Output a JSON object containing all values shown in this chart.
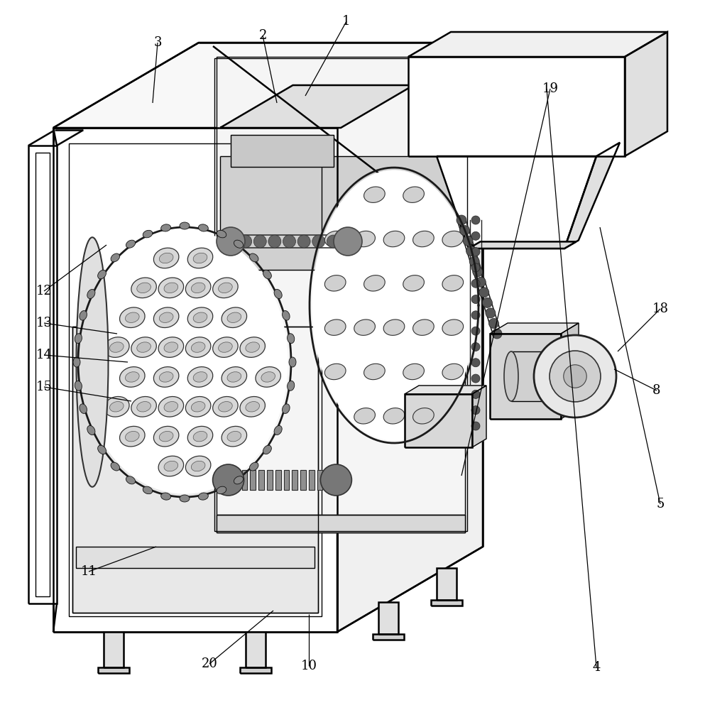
{
  "bg_color": "#ffffff",
  "line_color": "#000000",
  "lw_main": 1.8,
  "lw_thin": 1.0,
  "lw_ann": 0.9,
  "label_fontsize": 13,
  "figsize": [
    9.93,
    10.0
  ],
  "dpi": 100
}
